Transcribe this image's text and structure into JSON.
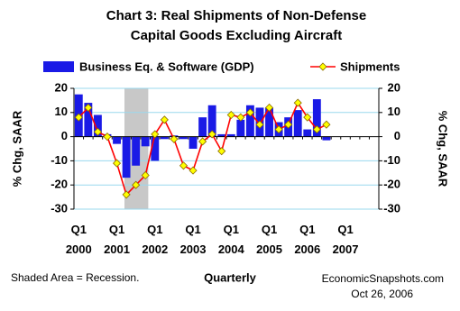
{
  "chart_data": {
    "type": "bar-line",
    "title": "Chart 3: Real Shipments of Non-Defense",
    "subtitle": "Capital Goods Excluding Aircraft",
    "x_label": "Quarterly",
    "y_label": "% Chg, SAAR",
    "y2_label": "% Chg, SAAR",
    "note": "Shaded Area = Recession.",
    "source": "EconomicSnapshots.com",
    "date": "Oct 26, 2006",
    "categories": [
      "Q1 2000",
      null,
      null,
      null,
      "Q1 2001",
      null,
      null,
      null,
      "Q1 2002",
      null,
      null,
      null,
      "Q1 2003",
      null,
      null,
      null,
      "Q1 2004",
      null,
      null,
      null,
      "Q1 2005",
      null,
      null,
      null,
      "Q1 2006",
      null,
      null,
      null,
      "Q1 2007",
      null,
      null,
      null
    ],
    "shade_x": [
      5.3,
      7.8
    ],
    "series": [
      {
        "name": "Business Eq. & Software (GDP)",
        "type": "bar",
        "color": "#1a1ae6",
        "values": [
          17.5,
          14,
          9,
          1,
          -3,
          -17,
          -12,
          -4,
          -10,
          -1,
          0.5,
          -1,
          -5,
          8,
          13,
          1,
          1,
          7,
          13,
          12,
          12,
          6,
          8,
          11,
          3,
          15.5,
          -1.5,
          null,
          null,
          null,
          null,
          null
        ]
      },
      {
        "name": "Shipments",
        "type": "line",
        "color": "#ff0000",
        "marker_color": "#ffff00",
        "values": [
          8,
          12,
          2,
          0,
          -11,
          -24,
          -20,
          -16,
          1,
          7,
          -1,
          -12,
          -14,
          -2,
          1,
          -6,
          9,
          8,
          10,
          5,
          12,
          3,
          5,
          14,
          8,
          3,
          5,
          null,
          null,
          null,
          null,
          null
        ]
      }
    ],
    "ylim": [
      -30,
      20
    ],
    "yticks": [
      -30,
      -20,
      -10,
      0,
      10,
      20
    ],
    "y2lim": [
      -30,
      20
    ],
    "y2ticks": [
      -30,
      -20,
      -10,
      0,
      10,
      20
    ],
    "grid": true
  }
}
